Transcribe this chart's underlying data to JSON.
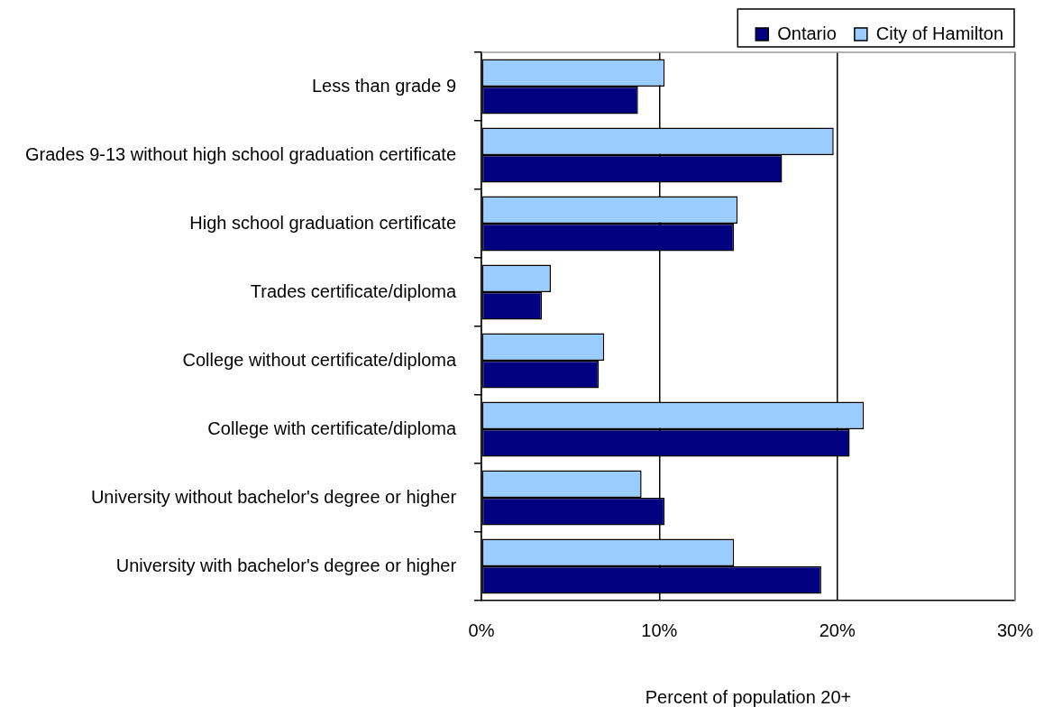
{
  "chart_data": {
    "type": "bar",
    "orientation": "horizontal",
    "categories": [
      "Less than grade 9",
      "Grades 9-13 without high school graduation certificate",
      "High school graduation certificate",
      "Trades certificate/diploma",
      "College without certificate/diploma",
      "College with certificate/diploma",
      "University without bachelor's degree or higher",
      "University with bachelor's degree or higher"
    ],
    "series": [
      {
        "name": "Ontario",
        "color": "#000080",
        "values": [
          8.8,
          16.9,
          14.2,
          3.4,
          6.6,
          20.7,
          10.3,
          19.1
        ]
      },
      {
        "name": "City of Hamilton",
        "color": "#99ccff",
        "values": [
          10.3,
          19.8,
          14.4,
          3.9,
          6.9,
          21.5,
          9.0,
          14.2
        ]
      }
    ],
    "xlim": [
      0,
      30
    ],
    "xticks": [
      {
        "value": 0,
        "label": "0%"
      },
      {
        "value": 10,
        "label": "10%"
      },
      {
        "value": 20,
        "label": "20%"
      },
      {
        "value": 30,
        "label": "30%"
      }
    ],
    "xlabel": "Percent of population 20+",
    "grid": "x",
    "legend": "top right"
  }
}
